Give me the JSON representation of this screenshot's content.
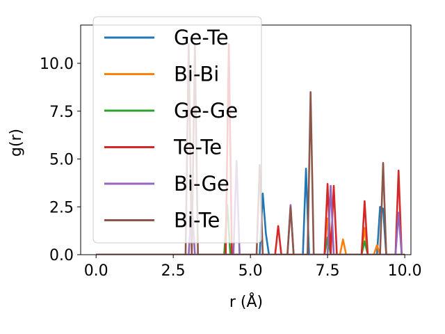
{
  "chart_data": {
    "type": "line",
    "xlabel": "r (Å)",
    "ylabel": "g(r)",
    "xlim": [
      -0.5,
      10.2
    ],
    "ylim": [
      0,
      12
    ],
    "xticks": [
      0,
      2.5,
      5,
      7.5,
      10
    ],
    "xtick_labels": [
      "0.0",
      "2.5",
      "5.0",
      "7.5",
      "10.0"
    ],
    "yticks": [
      0,
      2.5,
      5,
      7.5,
      10
    ],
    "ytick_labels": [
      "0.0",
      "2.5",
      "5.0",
      "7.5",
      "10.0"
    ],
    "grid": false,
    "legend_position": "upper-left",
    "series": [
      {
        "name": "Ge-Te",
        "color": "#1f77b4",
        "x": [
          0,
          5.3,
          5.4,
          5.5,
          5.6,
          6.7,
          6.8,
          6.9,
          9.1,
          9.2,
          9.3,
          9.4,
          10.0
        ],
        "y": [
          0,
          0,
          3.2,
          1.1,
          0,
          0,
          4.5,
          0,
          0,
          2.5,
          2.4,
          0,
          0
        ]
      },
      {
        "name": "Bi-Bi",
        "color": "#ff7f0e",
        "x": [
          0,
          7.4,
          7.5,
          7.6,
          7.9,
          8.0,
          8.1,
          8.6,
          8.7,
          8.8,
          9.0,
          9.1,
          9.2,
          10.0
        ],
        "y": [
          0,
          0,
          1.9,
          0,
          0,
          0.8,
          0,
          0,
          1.4,
          0,
          0,
          0.5,
          0,
          0
        ]
      },
      {
        "name": "Ge-Ge",
        "color": "#2ca02c",
        "x": [
          0,
          4.15,
          4.25,
          4.35,
          7.4,
          7.5,
          7.6,
          8.6,
          8.7,
          8.8,
          10.0
        ],
        "y": [
          0,
          0,
          2.6,
          0,
          0,
          0.9,
          0,
          0,
          0.7,
          0,
          0
        ]
      },
      {
        "name": "Te-Te",
        "color": "#d62728",
        "x": [
          0,
          4.2,
          4.3,
          4.4,
          5.8,
          5.9,
          6.0,
          7.4,
          7.5,
          7.6,
          7.7,
          7.8,
          8.6,
          8.7,
          8.8,
          9.7,
          9.8,
          9.9,
          10.0
        ],
        "y": [
          0,
          0,
          11.0,
          0,
          0,
          1.5,
          0,
          0,
          3.7,
          0,
          3.6,
          0,
          0,
          2.8,
          0,
          0,
          4.4,
          0,
          0
        ]
      },
      {
        "name": "Bi-Ge",
        "color": "#9467bd",
        "x": [
          0,
          3.0,
          3.1,
          3.2,
          4.45,
          4.55,
          4.65,
          6.2,
          6.3,
          6.4,
          7.5,
          7.6,
          7.7,
          9.7,
          9.8,
          9.9,
          10.0
        ],
        "y": [
          0,
          0,
          2.9,
          0,
          0,
          4.9,
          0,
          0,
          2.6,
          0,
          0,
          3.6,
          0,
          0,
          2.2,
          0,
          0
        ]
      },
      {
        "name": "Bi-Te",
        "color": "#8c564b",
        "x": [
          0,
          2.9,
          3.0,
          3.1,
          3.2,
          3.3,
          5.2,
          5.3,
          5.4,
          6.2,
          6.3,
          6.4,
          6.85,
          6.95,
          7.05,
          9.2,
          9.3,
          9.4,
          10.0
        ],
        "y": [
          0,
          0,
          11.0,
          0,
          11.0,
          0,
          0,
          4.7,
          0,
          0,
          2.5,
          0,
          0,
          8.5,
          0,
          0,
          4.8,
          0,
          0
        ]
      }
    ]
  }
}
